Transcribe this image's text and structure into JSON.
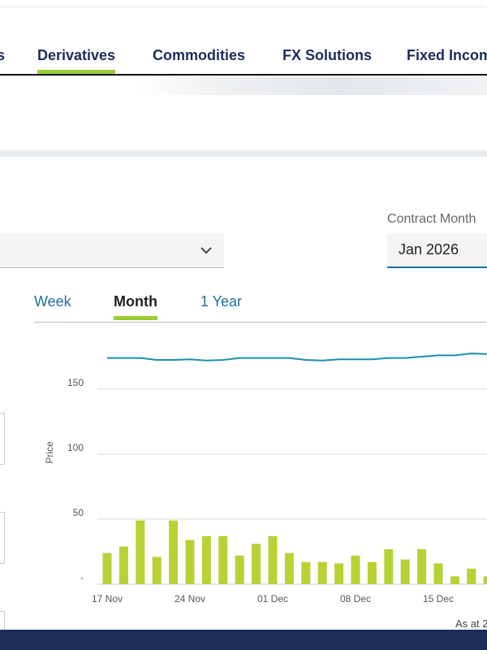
{
  "nav": {
    "tabs": [
      "s",
      "Derivatives",
      "Commodities",
      "FX Solutions",
      "Fixed Income"
    ],
    "active": 1
  },
  "filters": {
    "contract_month_label": "Contract Month",
    "contract_month_value": "Jan 2026"
  },
  "range_tabs": {
    "tabs": [
      "Week",
      "Month",
      "1 Year"
    ],
    "active": 1
  },
  "chart_data": {
    "type": "combo",
    "y_label": "Price",
    "categories": [
      "17 Nov",
      null,
      null,
      null,
      null,
      "24 Nov",
      null,
      null,
      null,
      null,
      "01 Dec",
      null,
      null,
      null,
      null,
      "08 Dec",
      null,
      null,
      null,
      null,
      "15 Dec",
      null,
      null,
      null
    ],
    "series": [
      {
        "type": "bar",
        "color": "#b5d334",
        "values": [
          24,
          29,
          49,
          21,
          49,
          34,
          37,
          37,
          22,
          31,
          37,
          24,
          17,
          17,
          16,
          22,
          17,
          27,
          19,
          27,
          16,
          6,
          12,
          6
        ]
      },
      {
        "type": "line",
        "color": "#1b8fa8",
        "values": [
          174,
          174,
          174,
          172.5,
          172.5,
          173,
          172,
          172.5,
          174,
          174,
          174,
          174,
          172.5,
          172,
          173,
          173,
          173,
          174,
          174,
          175,
          176,
          176,
          177.5,
          177
        ]
      }
    ],
    "ylim": [
      0,
      185
    ],
    "yticks": [
      {
        "value": 0,
        "label": "-"
      },
      50,
      100,
      150
    ],
    "grid": true
  },
  "footer": {
    "note": "As at 2"
  }
}
